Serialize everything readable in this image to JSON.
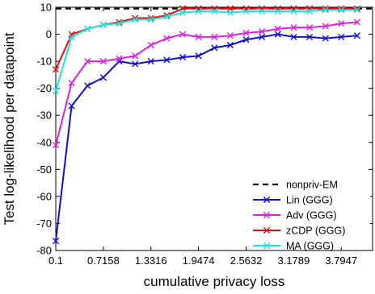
{
  "chart_data": {
    "type": "line",
    "title": "",
    "xlabel": "cumulative privacy loss",
    "ylabel": "Test log-likelihood per datapoint",
    "xlim": [
      0.1,
      4.2
    ],
    "ylim": [
      -80,
      10
    ],
    "x_tick_values": [
      0.1,
      0.7158,
      1.3316,
      1.9474,
      2.5632,
      3.1789,
      3.7947
    ],
    "x_tick_labels": [
      "0.1",
      "0.7158",
      "1.3316",
      "1.9474",
      "2.5632",
      "3.1789",
      "3.7947"
    ],
    "y_tick_values": [
      10,
      0,
      -10,
      -20,
      -30,
      -40,
      -50,
      -60,
      -70,
      -80
    ],
    "y_tick_labels": [
      "10",
      "0",
      "-10",
      "-20",
      "-30",
      "-40",
      "-50",
      "-60",
      "-70",
      "-80"
    ],
    "legend_position": "bottom-right",
    "reference_line": {
      "name": "nonpriv-EM",
      "y": 9.5,
      "color": "#000000",
      "style": "dashed"
    },
    "x": [
      0.1,
      0.3053,
      0.5105,
      0.7158,
      0.9211,
      1.1263,
      1.3316,
      1.5368,
      1.7421,
      1.9474,
      2.1526,
      2.3579,
      2.5632,
      2.7684,
      2.9737,
      3.1789,
      3.3842,
      3.5895,
      3.7947,
      4.0
    ],
    "series": [
      {
        "name": "Lin (GGG)",
        "color": "#1010d0",
        "values": [
          -76.5,
          -26.5,
          -19,
          -16,
          -10,
          -11,
          -10,
          -9.5,
          -8.5,
          -8,
          -5,
          -4,
          -2,
          -1,
          0,
          -1,
          -1,
          -1.5,
          -1,
          -0.5
        ]
      },
      {
        "name": "Adv (GGG)",
        "color": "#e020e0",
        "values": [
          -41,
          -18,
          -10,
          -10,
          -9,
          -8,
          -4,
          -1.5,
          0,
          -1,
          -1,
          -0.5,
          0.5,
          1,
          2,
          2.5,
          2.5,
          3,
          4,
          4.5
        ]
      },
      {
        "name": "zCDP (GGG)",
        "color": "#e01010",
        "values": [
          -13,
          0,
          2,
          3.5,
          4.5,
          6,
          6,
          7,
          9.5,
          9.5,
          9.5,
          9.5,
          9.5,
          9.5,
          9.5,
          9.5,
          9.5,
          9.5,
          9.5,
          9.5
        ]
      },
      {
        "name": "MA (GGG)",
        "color": "#20e0e0",
        "values": [
          -21,
          -1,
          2,
          3.5,
          4,
          5.5,
          5.5,
          6.5,
          8,
          8.5,
          8.5,
          8,
          8.5,
          8.5,
          8.5,
          8.5,
          8.5,
          9,
          9,
          9
        ]
      }
    ]
  }
}
